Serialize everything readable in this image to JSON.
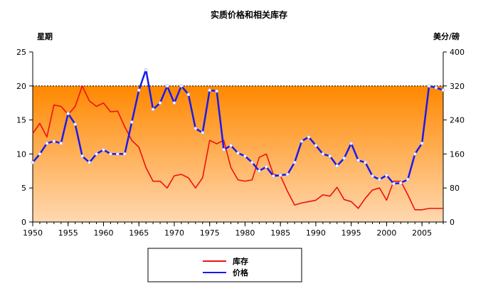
{
  "chart_data": {
    "type": "line",
    "title": "实质价格和相关库存",
    "ylabel_left": "星期",
    "ylabel_right": "美分/磅",
    "x_range": [
      1950,
      2008
    ],
    "ylim_left": [
      0,
      25
    ],
    "ylim_right": [
      0,
      400
    ],
    "x_ticks": [
      1950,
      1955,
      1960,
      1965,
      1970,
      1975,
      1980,
      1985,
      1990,
      1995,
      2000,
      2005
    ],
    "y_ticks_left": [
      0,
      5,
      10,
      15,
      20,
      25
    ],
    "y_ticks_right": [
      0,
      80,
      160,
      240,
      320,
      400
    ],
    "reference_line_left": 20,
    "grid": false,
    "legend_position": "bottom",
    "colors": {
      "stocks": "#ee1111",
      "price": "#1a1aee",
      "fill_top": "#ff8800",
      "fill_bottom": "#ffd8b0"
    },
    "series": [
      {
        "name": "库存",
        "axis": "left",
        "x": [
          1950,
          1951,
          1952,
          1953,
          1954,
          1955,
          1956,
          1957,
          1958,
          1959,
          1960,
          1961,
          1962,
          1963,
          1964,
          1965,
          1966,
          1967,
          1968,
          1969,
          1970,
          1971,
          1972,
          1973,
          1974,
          1975,
          1976,
          1977,
          1978,
          1979,
          1980,
          1981,
          1982,
          1983,
          1984,
          1985,
          1986,
          1987,
          1988,
          1989,
          1990,
          1991,
          1992,
          1993,
          1994,
          1995,
          1996,
          1997,
          1998,
          1999,
          2000,
          2001,
          2002,
          2003,
          2004,
          2005,
          2006,
          2007,
          2008
        ],
        "values": [
          13,
          14.5,
          12.5,
          17.2,
          17,
          15.8,
          17,
          20,
          17.8,
          17,
          17.5,
          16.2,
          16.3,
          14,
          12,
          11,
          8,
          6,
          6,
          5,
          6.8,
          7,
          6.5,
          5,
          6.5,
          12,
          11.5,
          12,
          8,
          6.2,
          6,
          6.2,
          9.5,
          10,
          7,
          6.8,
          4.5,
          2.5,
          2.8,
          3,
          3.2,
          4,
          3.8,
          5.1,
          3.3,
          3,
          2,
          3.5,
          4.7,
          5,
          3.2,
          6,
          6,
          4,
          1.8,
          1.8,
          2,
          2,
          2
        ]
      },
      {
        "name": "价格",
        "axis": "right",
        "x": [
          1950,
          1951,
          1952,
          1953,
          1954,
          1955,
          1956,
          1957,
          1958,
          1959,
          1960,
          1961,
          1962,
          1963,
          1964,
          1965,
          1966,
          1967,
          1968,
          1969,
          1970,
          1971,
          1972,
          1973,
          1974,
          1975,
          1976,
          1977,
          1978,
          1979,
          1980,
          1981,
          1982,
          1983,
          1984,
          1985,
          1986,
          1987,
          1988,
          1989,
          1990,
          1991,
          1992,
          1993,
          1994,
          1995,
          1996,
          1997,
          1998,
          1999,
          2000,
          2001,
          2002,
          2003,
          2004,
          2005,
          2006,
          2007,
          2008
        ],
        "values": [
          140,
          160,
          185,
          190,
          185,
          255,
          230,
          155,
          140,
          160,
          170,
          160,
          160,
          160,
          235,
          310,
          358,
          265,
          280,
          320,
          280,
          320,
          300,
          220,
          210,
          310,
          308,
          170,
          180,
          162,
          155,
          140,
          120,
          130,
          108,
          110,
          112,
          140,
          190,
          200,
          180,
          160,
          155,
          132,
          150,
          185,
          145,
          140,
          108,
          100,
          110,
          90,
          92,
          100,
          160,
          185,
          320,
          316,
          310
        ]
      }
    ]
  }
}
